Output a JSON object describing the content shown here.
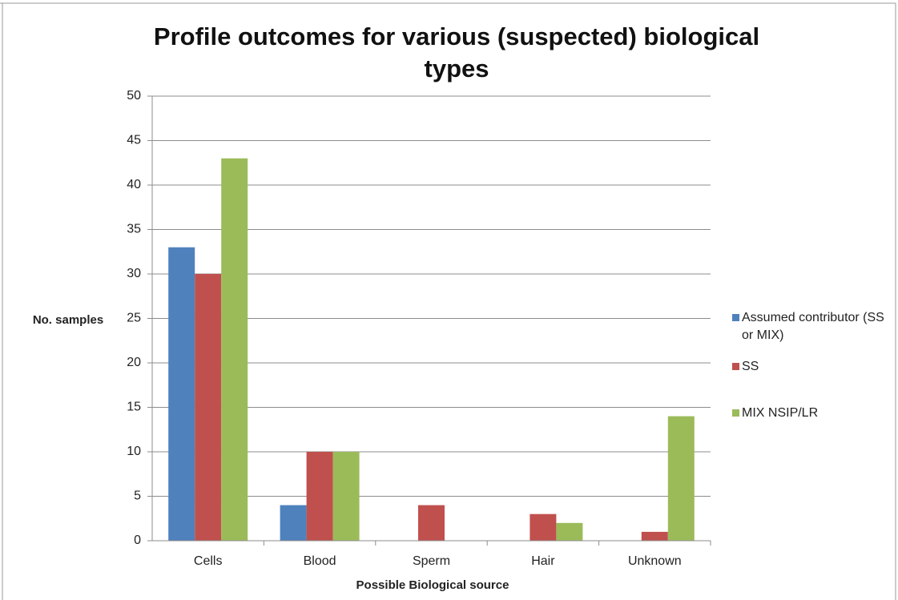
{
  "chart_data": {
    "type": "bar",
    "title": "Profile outcomes for various (suspected) biological types",
    "x_label": "Possible Biological source",
    "y_label": "No. samples",
    "categories": [
      "Cells",
      "Blood",
      "Sperm",
      "Hair",
      "Unknown"
    ],
    "series": [
      {
        "name": "Assumed contributor (SS or MIX)",
        "color": "#4f81bd",
        "values": [
          33,
          4,
          0,
          0,
          0
        ]
      },
      {
        "name": "SS",
        "color": "#c0504d",
        "values": [
          30,
          10,
          4,
          3,
          1
        ]
      },
      {
        "name": "MIX NSIP/LR",
        "color": "#9bbb59",
        "values": [
          43,
          10,
          0,
          2,
          14
        ]
      }
    ],
    "ylim": [
      0,
      50
    ],
    "yticks": [
      0,
      5,
      10,
      15,
      20,
      25,
      30,
      35,
      40,
      45,
      50
    ],
    "grid": true,
    "legend": "right"
  }
}
